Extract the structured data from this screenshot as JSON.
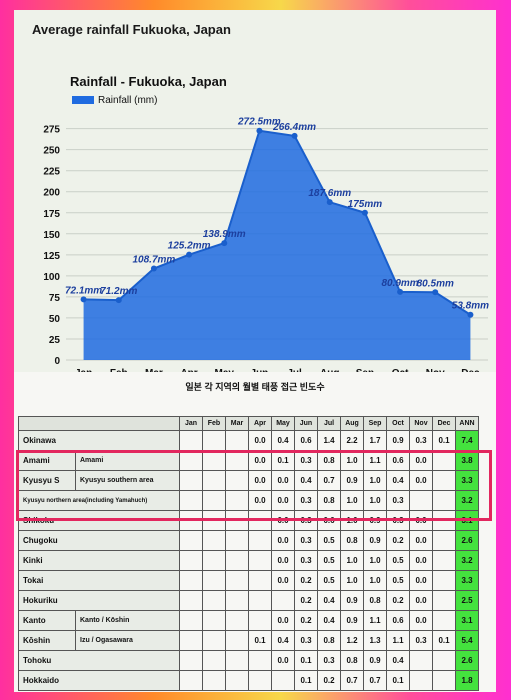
{
  "page_title": "Average rainfall Fukuoka, Japan",
  "chart_data": {
    "type": "area",
    "title": "Rainfall - Fukuoka, Japan",
    "legend": [
      "Rainfall (mm)"
    ],
    "legend_position": "top-left",
    "categories": [
      "Jan",
      "Feb",
      "Mar",
      "Apr",
      "May",
      "Jun",
      "Jul",
      "Aug",
      "Sep",
      "Oct",
      "Nov",
      "Dec"
    ],
    "values": [
      72.1,
      71.2,
      108.7,
      125.2,
      138.9,
      272.5,
      266.4,
      187.6,
      175,
      80.9,
      80.5,
      53.8
    ],
    "value_labels": [
      "72.1mm",
      "71.2mm",
      "108.7mm",
      "125.2mm",
      "138.9mm",
      "272.5mm",
      "266.4mm",
      "187.6mm",
      "175mm",
      "80.9mm",
      "80.5mm",
      "53.8mm"
    ],
    "yticks": [
      0,
      25,
      50,
      75,
      100,
      125,
      150,
      175,
      200,
      225,
      250,
      275
    ],
    "ylim": [
      0,
      275
    ],
    "grid": true,
    "colors": {
      "fill": "#1f6be0",
      "line": "#1a5fcc",
      "label": "#1c3f9e"
    }
  },
  "table": {
    "title": "일본 각 지역의 월별 태풍 접근 빈도수",
    "headers": [
      "Jan",
      "Feb",
      "Mar",
      "Apr",
      "May",
      "Jun",
      "Jul",
      "Aug",
      "Sep",
      "Oct",
      "Nov",
      "Dec",
      "ANN"
    ],
    "rows": [
      {
        "group": "Okinawa",
        "sub": "",
        "values": [
          "",
          "",
          "",
          "0.0",
          "0.4",
          "0.6",
          "1.4",
          "2.2",
          "1.7",
          "0.9",
          "0.3",
          "0.1",
          "7.4"
        ]
      },
      {
        "group": "Amami",
        "sub": "Amami",
        "values": [
          "",
          "",
          "",
          "0.0",
          "0.1",
          "0.3",
          "0.8",
          "1.0",
          "1.1",
          "0.6",
          "0.0",
          "",
          "3.8"
        ]
      },
      {
        "group": "Kyusyu S",
        "sub": "Kyusyu southern area",
        "values": [
          "",
          "",
          "",
          "0.0",
          "0.0",
          "0.4",
          "0.7",
          "0.9",
          "1.0",
          "0.4",
          "0.0",
          "",
          "3.3"
        ]
      },
      {
        "group": "Kyusyu northern area(including Yamahuch)",
        "sub": "",
        "values": [
          "",
          "",
          "",
          "0.0",
          "0.0",
          "0.3",
          "0.8",
          "1.0",
          "1.0",
          "0.3",
          "",
          "",
          "3.2"
        ]
      },
      {
        "group": "Shikoku",
        "sub": "",
        "values": [
          "",
          "",
          "",
          "",
          "0.0",
          "0.3",
          "0.6",
          "1.0",
          "0.9",
          "0.3",
          "0.0",
          "",
          "3.1"
        ]
      },
      {
        "group": "Chugoku",
        "sub": "",
        "values": [
          "",
          "",
          "",
          "",
          "0.0",
          "0.3",
          "0.5",
          "0.8",
          "0.9",
          "0.2",
          "0.0",
          "",
          "2.6"
        ]
      },
      {
        "group": "Kinki",
        "sub": "",
        "values": [
          "",
          "",
          "",
          "",
          "0.0",
          "0.3",
          "0.5",
          "1.0",
          "1.0",
          "0.5",
          "0.0",
          "",
          "3.2"
        ]
      },
      {
        "group": "Tokai",
        "sub": "",
        "values": [
          "",
          "",
          "",
          "",
          "0.0",
          "0.2",
          "0.5",
          "1.0",
          "1.0",
          "0.5",
          "0.0",
          "",
          "3.3"
        ]
      },
      {
        "group": "Hokuriku",
        "sub": "",
        "values": [
          "",
          "",
          "",
          "",
          "",
          "0.2",
          "0.4",
          "0.9",
          "0.8",
          "0.2",
          "0.0",
          "",
          "2.5"
        ]
      },
      {
        "group": "Kanto",
        "sub": "Kanto / Kōshin",
        "values": [
          "",
          "",
          "",
          "",
          "0.0",
          "0.2",
          "0.4",
          "0.9",
          "1.1",
          "0.6",
          "0.0",
          "",
          "3.1"
        ]
      },
      {
        "group": "Kōshin",
        "sub": "Izu / Ogasawara",
        "values": [
          "",
          "",
          "",
          "0.1",
          "0.4",
          "0.3",
          "0.8",
          "1.2",
          "1.3",
          "1.1",
          "0.3",
          "0.1",
          "5.4"
        ]
      },
      {
        "group": "Tohoku",
        "sub": "",
        "values": [
          "",
          "",
          "",
          "",
          "0.0",
          "0.1",
          "0.3",
          "0.8",
          "0.9",
          "0.4",
          "",
          "",
          "2.6"
        ]
      },
      {
        "group": "Hokkaido",
        "sub": "",
        "values": [
          "",
          "",
          "",
          "",
          "",
          "0.1",
          "0.2",
          "0.7",
          "0.7",
          "0.1",
          "",
          "",
          "1.8"
        ]
      }
    ]
  }
}
